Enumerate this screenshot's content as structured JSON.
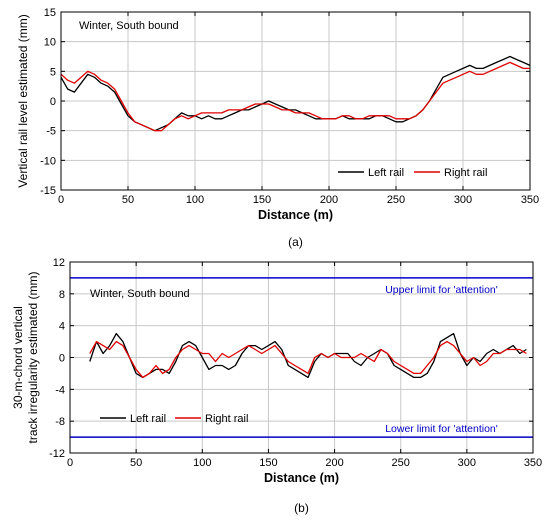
{
  "chart_data": [
    {
      "type": "line",
      "panel_label": "(a)",
      "annotation": "Winter, South bound",
      "xlabel": "Distance (m)",
      "ylabel": "Vertical rail level estimated (mm)",
      "xlim": [
        0,
        350
      ],
      "ylim": [
        -15,
        15
      ],
      "x_ticks": [
        0,
        50,
        100,
        150,
        200,
        250,
        300,
        350
      ],
      "y_ticks": [
        -15,
        -10,
        -5,
        0,
        5,
        10,
        15
      ],
      "grid": true,
      "legend_position": "bottom-right",
      "series": [
        {
          "name": "Left rail",
          "color": "#000000",
          "x": [
            0,
            5,
            10,
            15,
            20,
            25,
            30,
            35,
            40,
            45,
            50,
            55,
            60,
            65,
            70,
            75,
            80,
            85,
            90,
            95,
            100,
            105,
            110,
            115,
            120,
            125,
            130,
            135,
            140,
            145,
            150,
            155,
            160,
            165,
            170,
            175,
            180,
            185,
            190,
            195,
            200,
            205,
            210,
            215,
            220,
            225,
            230,
            235,
            240,
            245,
            250,
            255,
            260,
            265,
            270,
            275,
            280,
            285,
            290,
            295,
            300,
            305,
            310,
            315,
            320,
            325,
            330,
            335,
            340,
            345,
            350
          ],
          "values": [
            4,
            2,
            1.5,
            3,
            4.5,
            4,
            3,
            2.5,
            1.5,
            -0.5,
            -2.5,
            -3.5,
            -4,
            -4.5,
            -5,
            -4.5,
            -4,
            -3,
            -2,
            -2.5,
            -2.5,
            -3,
            -2.5,
            -3,
            -3,
            -2.5,
            -2,
            -1.5,
            -1.5,
            -1,
            -0.5,
            0,
            -0.5,
            -1,
            -1.5,
            -1.5,
            -2,
            -2.5,
            -3,
            -3,
            -3,
            -3,
            -2.5,
            -3,
            -3,
            -3,
            -3,
            -2.5,
            -2.5,
            -3,
            -3.5,
            -3.5,
            -3,
            -2.5,
            -1.5,
            0,
            2,
            4,
            4.5,
            5,
            5.5,
            6,
            5.5,
            5.5,
            6,
            6.5,
            7,
            7.5,
            7,
            6.5,
            6
          ]
        },
        {
          "name": "Right rail",
          "color": "#e00000",
          "x": [
            0,
            5,
            10,
            15,
            20,
            25,
            30,
            35,
            40,
            45,
            50,
            55,
            60,
            65,
            70,
            75,
            80,
            85,
            90,
            95,
            100,
            105,
            110,
            115,
            120,
            125,
            130,
            135,
            140,
            145,
            150,
            155,
            160,
            165,
            170,
            175,
            180,
            185,
            190,
            195,
            200,
            205,
            210,
            215,
            220,
            225,
            230,
            235,
            240,
            245,
            250,
            255,
            260,
            265,
            270,
            275,
            280,
            285,
            290,
            295,
            300,
            305,
            310,
            315,
            320,
            325,
            330,
            335,
            340,
            345,
            350
          ],
          "values": [
            4.5,
            3.5,
            3,
            4,
            5,
            4.5,
            3.5,
            3,
            2,
            0,
            -2,
            -3.5,
            -4,
            -4.5,
            -5,
            -5,
            -4,
            -3,
            -2.5,
            -3,
            -2.5,
            -2,
            -2,
            -2,
            -2,
            -1.5,
            -1.5,
            -1.5,
            -1,
            -0.5,
            -0.5,
            -0.5,
            -1,
            -1.5,
            -1.5,
            -2,
            -2,
            -2,
            -2.5,
            -3,
            -3,
            -3,
            -2.5,
            -2.5,
            -3,
            -3,
            -2.5,
            -2.5,
            -2.5,
            -2.5,
            -3,
            -3,
            -3,
            -2.5,
            -1.5,
            0,
            1.5,
            3,
            3.5,
            4,
            4.5,
            5,
            4.5,
            4.5,
            5,
            5.5,
            6,
            6.5,
            6,
            5.5,
            5.5
          ]
        }
      ]
    },
    {
      "type": "line",
      "panel_label": "(b)",
      "annotation": "Winter, South bound",
      "xlabel": "Distance (m)",
      "ylabel_lines": [
        "30-m-chord vertical",
        "track irregularity estimated (mm)"
      ],
      "xlim": [
        0,
        350
      ],
      "ylim": [
        -12,
        12
      ],
      "x_ticks": [
        0,
        50,
        100,
        150,
        200,
        250,
        300,
        350
      ],
      "y_ticks": [
        -12,
        -8,
        -4,
        0,
        4,
        8,
        12
      ],
      "grid": true,
      "legend_position": "bottom-left",
      "limits": [
        {
          "label": "Upper limit for 'attention'",
          "value": 10,
          "color": "#0000c8"
        },
        {
          "label": "Lower limit for 'attention'",
          "value": -10,
          "color": "#0000c8"
        }
      ],
      "series": [
        {
          "name": "Left rail",
          "color": "#000000",
          "x": [
            15,
            20,
            25,
            30,
            35,
            40,
            45,
            50,
            55,
            60,
            65,
            70,
            75,
            80,
            85,
            90,
            95,
            100,
            105,
            110,
            115,
            120,
            125,
            130,
            135,
            140,
            145,
            150,
            155,
            160,
            165,
            170,
            175,
            180,
            185,
            190,
            195,
            200,
            205,
            210,
            215,
            220,
            225,
            230,
            235,
            240,
            245,
            250,
            255,
            260,
            265,
            270,
            275,
            280,
            285,
            290,
            295,
            300,
            305,
            310,
            315,
            320,
            325,
            330,
            335,
            340,
            345
          ],
          "values": [
            -0.5,
            2,
            0.5,
            1.5,
            3,
            2,
            0,
            -2,
            -2.5,
            -2,
            -1.5,
            -1.5,
            -2,
            -0.5,
            1.5,
            2,
            1.5,
            0,
            -1.5,
            -1,
            -1,
            -1.5,
            -1,
            0.5,
            1.5,
            1.5,
            1,
            1.5,
            2,
            1,
            -1,
            -1.5,
            -2,
            -2.5,
            -0.5,
            0.5,
            0,
            0.5,
            0.5,
            0.5,
            -0.5,
            -1,
            0,
            0.5,
            1,
            0.5,
            -1,
            -1.5,
            -2,
            -2.5,
            -2.5,
            -2,
            -0.5,
            2,
            2.5,
            3,
            0.5,
            -1,
            0,
            -0.5,
            0.5,
            1,
            0.5,
            1,
            1.5,
            0.5,
            1
          ]
        },
        {
          "name": "Right rail",
          "color": "#e00000",
          "x": [
            15,
            20,
            25,
            30,
            35,
            40,
            45,
            50,
            55,
            60,
            65,
            70,
            75,
            80,
            85,
            90,
            95,
            100,
            105,
            110,
            115,
            120,
            125,
            130,
            135,
            140,
            145,
            150,
            155,
            160,
            165,
            170,
            175,
            180,
            185,
            190,
            195,
            200,
            205,
            210,
            215,
            220,
            225,
            230,
            235,
            240,
            245,
            250,
            255,
            260,
            265,
            270,
            275,
            280,
            285,
            290,
            295,
            300,
            305,
            310,
            315,
            320,
            325,
            330,
            335,
            340,
            345
          ],
          "values": [
            0.5,
            2,
            1.5,
            1,
            2,
            1.5,
            0,
            -1.5,
            -2.5,
            -2,
            -1,
            -2,
            -1.5,
            0,
            1,
            1.5,
            1,
            0.5,
            0.5,
            -0.5,
            0.5,
            0,
            0.5,
            1,
            1.5,
            1,
            0.5,
            1,
            1.5,
            0.5,
            -0.5,
            -1,
            -1.5,
            -2,
            0,
            0.5,
            0,
            0.5,
            0,
            0,
            0,
            0.5,
            0,
            -0.5,
            1,
            0.5,
            -0.5,
            -1,
            -1.5,
            -2,
            -2,
            -1,
            0,
            1.5,
            2,
            1.5,
            0.5,
            -0.5,
            0,
            -1,
            -0.5,
            0.5,
            0.5,
            1,
            1,
            1,
            0.5
          ]
        }
      ]
    }
  ]
}
